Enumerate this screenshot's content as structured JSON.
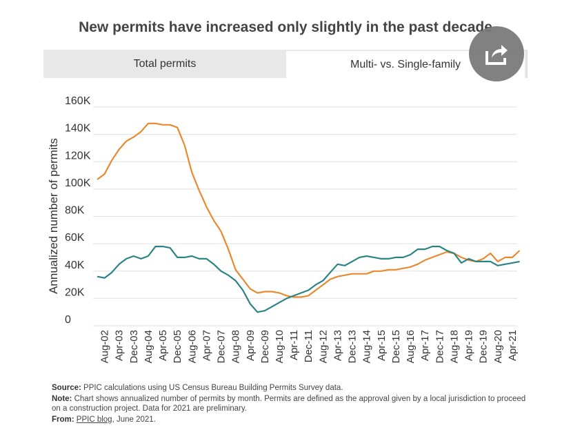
{
  "title": "New permits have increased only slightly in the past decade",
  "tabs": [
    {
      "label": "Total permits",
      "active": false
    },
    {
      "label": "Multi- vs. Single-family",
      "active": true
    }
  ],
  "share_button": {
    "icon": "share-icon"
  },
  "colors": {
    "single_family": "#e8892f",
    "multi_family": "#2a8284",
    "grid": "#e6e6e6",
    "text": "#333333"
  },
  "chart_data": {
    "type": "line",
    "title": "New permits have increased only slightly in the past decade",
    "xlabel": "",
    "ylabel": "Annualized number of permits",
    "ylim": [
      0,
      160000
    ],
    "yticks": [
      0,
      20000,
      40000,
      60000,
      80000,
      100000,
      120000,
      140000,
      160000
    ],
    "ytick_labels": [
      "0",
      "20K",
      "40K",
      "60K",
      "80K",
      "100K",
      "120K",
      "140K",
      "160K"
    ],
    "xtick_labels": [
      "Aug-02",
      "Apr-03",
      "Dec-03",
      "Aug-04",
      "Apr-05",
      "Dec-05",
      "Aug-06",
      "Apr-07",
      "Dec-07",
      "Aug-08",
      "Apr-09",
      "Dec-09",
      "Aug-10",
      "Apr-11",
      "Dec-11",
      "Aug-12",
      "Apr-13",
      "Dec-13",
      "Aug-14",
      "Apr-15",
      "Dec-15",
      "Aug-16",
      "Apr-17",
      "Dec-17",
      "Aug-18",
      "Apr-19",
      "Dec-19",
      "Aug-20",
      "Apr-21"
    ],
    "x_start": "Apr-02",
    "x_step_months": 4,
    "grid": true,
    "legend": "none",
    "series": [
      {
        "name": "Single-family",
        "color_key": "single_family",
        "values": [
          107,
          111,
          121,
          129,
          135,
          138,
          142,
          148,
          148,
          147,
          147,
          145,
          132,
          112,
          99,
          87,
          77,
          69,
          56,
          41,
          34,
          27,
          24,
          25,
          25,
          24,
          22,
          21,
          21,
          22,
          26,
          30,
          34,
          36,
          37,
          38,
          38,
          38,
          40,
          40,
          41,
          41,
          42,
          43,
          45,
          48,
          50,
          52,
          54,
          53,
          50,
          48,
          47,
          49,
          53,
          47,
          50,
          50,
          55
        ]
      },
      {
        "name": "Multi-family",
        "color_key": "multi_family",
        "values": [
          36,
          35,
          39,
          45,
          49,
          51,
          49,
          51,
          58,
          58,
          57,
          50,
          50,
          51,
          49,
          49,
          45,
          40,
          37,
          33,
          26,
          16,
          10,
          11,
          14,
          17,
          20,
          22,
          24,
          26,
          30,
          33,
          39,
          45,
          44,
          47,
          50,
          51,
          50,
          49,
          49,
          50,
          50,
          52,
          56,
          56,
          58,
          58,
          55,
          53,
          46,
          49,
          47,
          47,
          47,
          44,
          45,
          46,
          47
        ]
      }
    ],
    "value_units": "thousands of permits (annualized)"
  },
  "notes": {
    "source_label": "Source:",
    "source_text": " PPIC calculations using US Census Bureau Building Permits Survey data.",
    "note_label": "Note:",
    "note_text": " Chart shows annualized number of permits by month. Permits are defined as the approval given by a local jurisdiction to proceed on a construction project. Data for 2021 are preliminary.",
    "from_label": "From:",
    "from_link": "PPIC blog",
    "from_text": ", June 2021."
  }
}
